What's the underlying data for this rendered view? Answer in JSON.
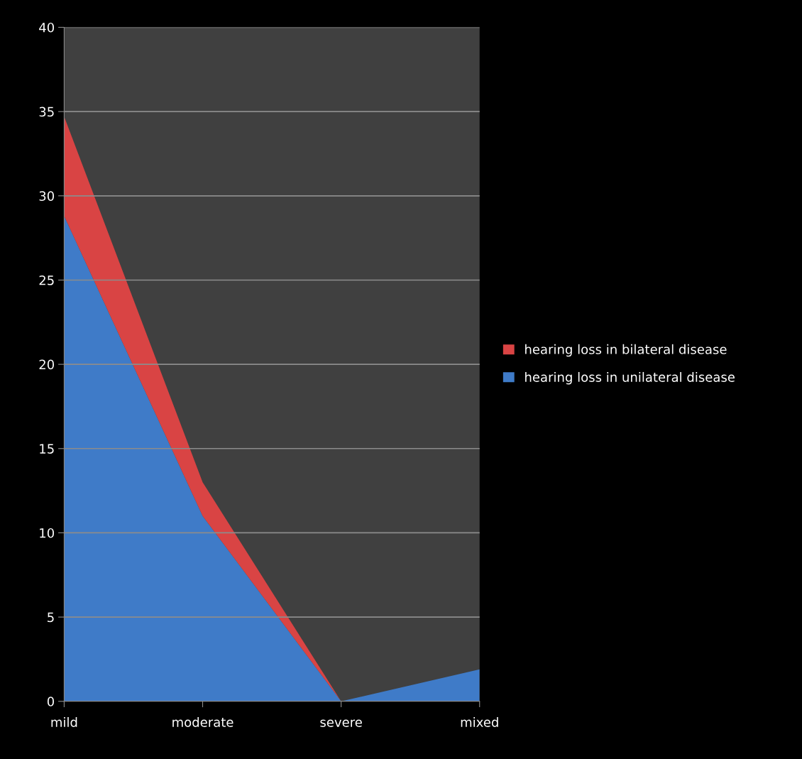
{
  "chart_data": {
    "type": "area",
    "stacked": true,
    "categories": [
      "mild",
      "moderate",
      "severe",
      "mixed"
    ],
    "series": [
      {
        "name": "hearing loss in unilateral disease",
        "color": "#3f7bc8",
        "values": [
          28.8,
          11,
          0,
          1.9
        ]
      },
      {
        "name": "hearing loss in bilateral disease",
        "color": "#d94444",
        "values": [
          5.9,
          2,
          0,
          0
        ]
      }
    ],
    "ylim": [
      0,
      40
    ],
    "yticks": [
      0,
      5,
      10,
      15,
      20,
      25,
      30,
      35,
      40
    ],
    "grid": "y",
    "legend": "right"
  }
}
